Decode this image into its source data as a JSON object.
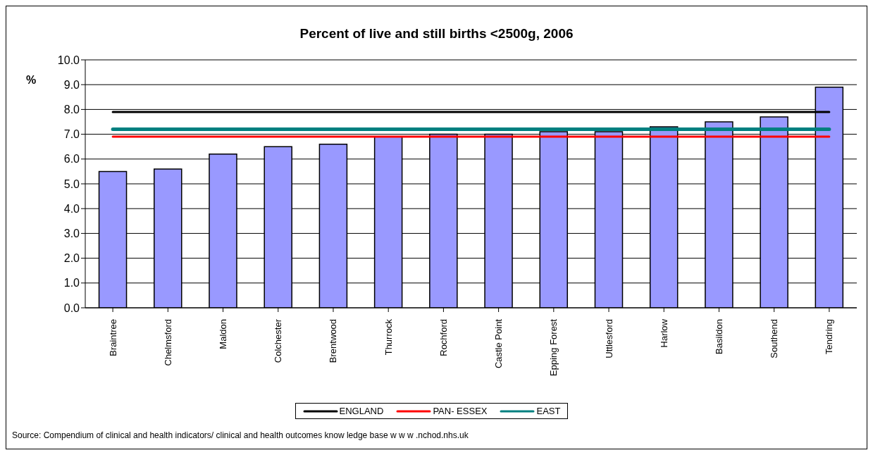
{
  "chart_data": {
    "type": "bar",
    "title": "Percent of live and still births <2500g, 2006",
    "ylabel": "%",
    "categories": [
      "Braintree",
      "Chelmsford",
      "Maldon",
      "Colchester",
      "Brentwood",
      "Thurrock",
      "Rochford",
      "Castle Point",
      "Epping Forest",
      "Uttlesford",
      "Harlow",
      "Basildon",
      "Southend",
      "Tendring"
    ],
    "series": [
      {
        "color": "#9999ff",
        "values": [
          5.5,
          5.6,
          6.2,
          6.5,
          6.6,
          6.9,
          7.0,
          7.0,
          7.1,
          7.1,
          7.3,
          7.5,
          7.7,
          8.9
        ]
      },
      {
        "type": "line",
        "name": "ENGLAND",
        "color": "#000000",
        "values": [
          7.9,
          7.9,
          7.9,
          7.9,
          7.9,
          7.9,
          7.9,
          7.9,
          7.9,
          7.9,
          7.9,
          7.9,
          7.9,
          7.9
        ]
      },
      {
        "type": "line",
        "name": "PAN- ESSEX",
        "color": "#ff0000",
        "values": [
          6.9,
          6.9,
          6.9,
          6.9,
          6.9,
          6.9,
          6.9,
          6.9,
          6.9,
          6.9,
          6.9,
          6.9,
          6.9,
          6.9
        ]
      },
      {
        "type": "line",
        "name": "EAST",
        "color": "#008080",
        "values": [
          7.2,
          7.2,
          7.2,
          7.2,
          7.2,
          7.2,
          7.2,
          7.2,
          7.2,
          7.2,
          7.2,
          7.2,
          7.2,
          7.2
        ]
      }
    ],
    "ylim": [
      0,
      10
    ],
    "yticks": [
      {
        "value": 0,
        "label": "0.0"
      },
      {
        "value": 1,
        "label": "1.0"
      },
      {
        "value": 2,
        "label": "2.0"
      },
      {
        "value": 3,
        "label": "3.0"
      },
      {
        "value": 4,
        "label": "4.0"
      },
      {
        "value": 5,
        "label": "5.0"
      },
      {
        "value": 6,
        "label": "6.0"
      },
      {
        "value": 7,
        "label": "7.0"
      },
      {
        "value": 8,
        "label": "8.0"
      },
      {
        "value": 9,
        "label": "9.0"
      },
      {
        "value": 10,
        "label": "10.0"
      }
    ],
    "grid": "y",
    "legend": "bottom",
    "marker": "none",
    "annotations": [
      "Source: Compendium of clinical and health indicators/ clinical and health outcomes know ledge base w w w .nchod.nhs.uk"
    ]
  }
}
